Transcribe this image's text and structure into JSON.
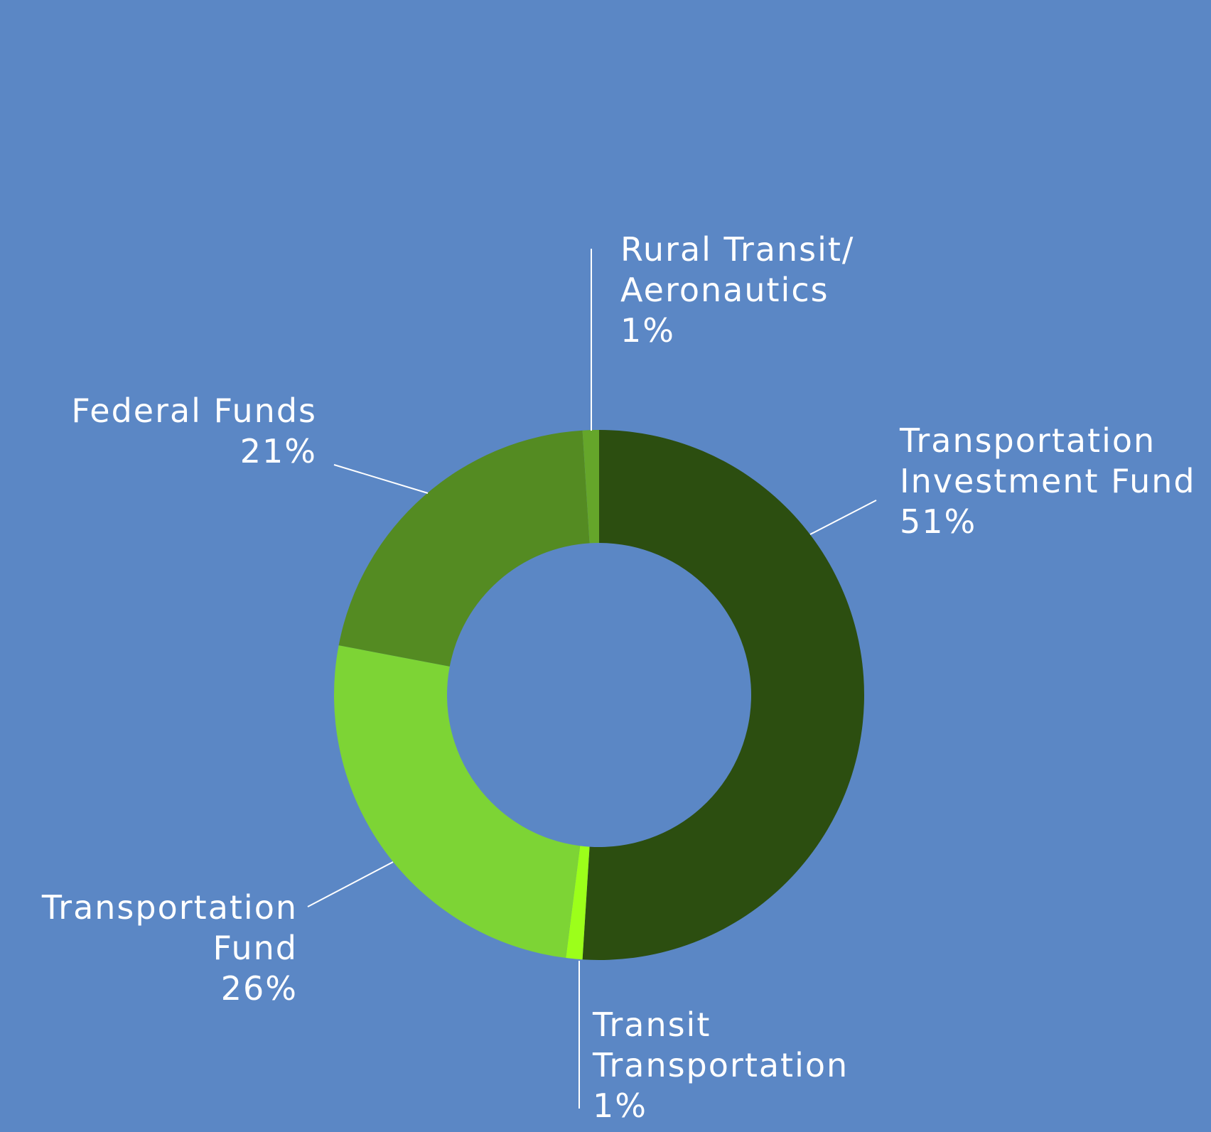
{
  "background": "#5b87c5",
  "chart_data": {
    "type": "pie",
    "donut": true,
    "start_angle_deg": 0,
    "direction": "clockwise",
    "slices": [
      {
        "name": "Transportation Investment Fund",
        "value": 51,
        "label": "51%",
        "color": "#2c4e10",
        "label_lines": [
          "Transportation",
          "Investment Fund",
          "51%"
        ]
      },
      {
        "name": "Transit Transportation",
        "value": 1,
        "label": "1%",
        "color": "#9cff1a",
        "label_lines": [
          "Transit",
          "Transportation",
          "1%"
        ]
      },
      {
        "name": "Transportation Fund",
        "value": 26,
        "label": "26%",
        "color": "#7dd435",
        "label_lines": [
          "Transportation",
          "Fund",
          "26%"
        ]
      },
      {
        "name": "Federal Funds",
        "value": 21,
        "label": "21%",
        "color": "#548b22",
        "label_lines": [
          "Federal Funds",
          "21%"
        ]
      },
      {
        "name": "Rural Transit/ Aeronautics",
        "value": 1,
        "label": "1%",
        "color": "#65a62a",
        "label_lines": [
          "Rural Transit/",
          "Aeronautics",
          "1%"
        ]
      }
    ]
  }
}
